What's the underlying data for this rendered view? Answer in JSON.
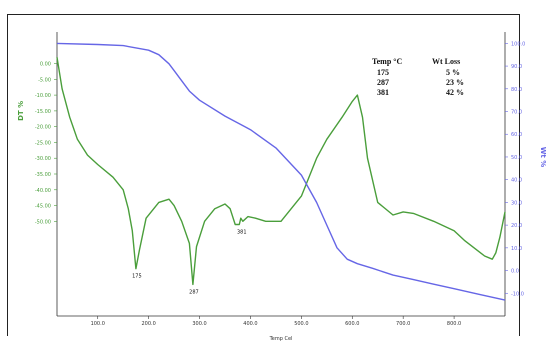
{
  "chart_data": {
    "type": "line",
    "title": "",
    "xlabel": "Temp Cel",
    "ylabel_left": "DT %",
    "ylabel_right": "Wt %",
    "xlim": [
      20,
      900
    ],
    "ylim_left": [
      -80,
      10
    ],
    "ylim_right": [
      -20,
      105
    ],
    "x_ticks": [
      "100.0",
      "200.0",
      "300.0",
      "400.0",
      "500.0",
      "600.0",
      "700.0",
      "800.0"
    ],
    "x_tick_values": [
      100,
      200,
      300,
      400,
      500,
      600,
      700,
      800
    ],
    "y_left_ticks": [
      "0.00",
      "-5.00",
      "-10.00",
      "-15.00",
      "-20.00",
      "-25.00",
      "-30.00",
      "-35.00",
      "-40.00",
      "-45.00",
      "-50.00"
    ],
    "y_left_tick_values": [
      0,
      -5,
      -10,
      -15,
      -20,
      -25,
      -30,
      -35,
      -40,
      -45,
      -50
    ],
    "y_right_ticks": [
      "100.0",
      "90.0",
      "80.0",
      "70.0",
      "60.0",
      "50.0",
      "40.0",
      "30.0",
      "20.0",
      "10.0",
      "0.0",
      "-10.0"
    ],
    "y_right_tick_values": [
      100,
      90,
      80,
      70,
      60,
      50,
      40,
      30,
      20,
      10,
      0,
      -10
    ],
    "grid": false,
    "series": [
      {
        "name": "DT",
        "axis": "left",
        "color": "#4a9e3b",
        "x": [
          20,
          30,
          45,
          60,
          80,
          100,
          130,
          150,
          160,
          168,
          175,
          182,
          195,
          220,
          240,
          250,
          265,
          280,
          287,
          294,
          310,
          330,
          350,
          360,
          370,
          378,
          381,
          385,
          395,
          410,
          430,
          460,
          500,
          530,
          550,
          580,
          600,
          610,
          620,
          630,
          650,
          680,
          700,
          720,
          760,
          800,
          820,
          860,
          875,
          882,
          890,
          900
        ],
        "y": [
          2,
          -8,
          -17,
          -24,
          -29,
          -32,
          -36,
          -40,
          -46,
          -53,
          -65,
          -59,
          -49,
          -44,
          -43,
          -45,
          -50,
          -57,
          -70,
          -58,
          -50,
          -46,
          -44.5,
          -46,
          -51,
          -51,
          -49,
          -50,
          -48.5,
          -49,
          -50,
          -50,
          -42,
          -30,
          -24,
          -17,
          -12,
          -10,
          -17,
          -30,
          -44,
          -48,
          -47,
          -47.5,
          -50,
          -53,
          -56,
          -61,
          -62,
          -60,
          -55,
          -47
        ]
      },
      {
        "name": "Wt",
        "axis": "right",
        "color": "#6666e6",
        "x": [
          20,
          100,
          150,
          200,
          220,
          240,
          250,
          260,
          280,
          300,
          350,
          400,
          450,
          500,
          530,
          550,
          570,
          590,
          610,
          640,
          680,
          720,
          760,
          800,
          850,
          900
        ],
        "y": [
          100,
          99.5,
          99,
          97,
          95,
          91,
          88,
          85,
          79,
          75,
          68,
          62,
          54,
          42,
          30,
          20,
          10,
          5,
          3,
          1,
          -2,
          -4,
          -6,
          -8,
          -10.5,
          -13
        ]
      }
    ],
    "table": {
      "headers": [
        "Temp °C",
        "Wt Loss"
      ],
      "rows": [
        [
          "175",
          "5 %"
        ],
        [
          "287",
          "23 %"
        ],
        [
          "381",
          "42 %"
        ]
      ]
    },
    "annotations": [
      {
        "x": 175,
        "y": -65,
        "text": "175"
      },
      {
        "x": 287,
        "y": -70,
        "text": "287"
      },
      {
        "x": 381,
        "y": -51,
        "text": "381"
      }
    ]
  }
}
